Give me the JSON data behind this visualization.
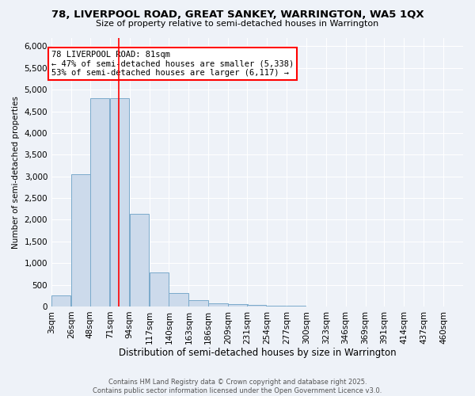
{
  "title_line1": "78, LIVERPOOL ROAD, GREAT SANKEY, WARRINGTON, WA5 1QX",
  "title_line2": "Size of property relative to semi-detached houses in Warrington",
  "xlabel": "Distribution of semi-detached houses by size in Warrington",
  "ylabel": "Number of semi-detached properties",
  "bar_color": "#ccdaeb",
  "bar_edgecolor": "#7aaacb",
  "annotation_text": "78 LIVERPOOL ROAD: 81sqm\n← 47% of semi-detached houses are smaller (5,338)\n53% of semi-detached houses are larger (6,117) →",
  "annotation_box_color": "white",
  "annotation_box_edgecolor": "red",
  "property_line_x": 81,
  "property_line_color": "red",
  "categories": [
    "3sqm",
    "26sqm",
    "48sqm",
    "71sqm",
    "94sqm",
    "117sqm",
    "140sqm",
    "163sqm",
    "186sqm",
    "209sqm",
    "231sqm",
    "254sqm",
    "277sqm",
    "300sqm",
    "323sqm",
    "346sqm",
    "369sqm",
    "391sqm",
    "414sqm",
    "437sqm",
    "460sqm"
  ],
  "bin_edges": [
    3,
    26,
    48,
    71,
    94,
    117,
    140,
    163,
    186,
    209,
    231,
    254,
    277,
    300,
    323,
    346,
    369,
    391,
    414,
    437,
    460
  ],
  "values": [
    250,
    3050,
    4800,
    4800,
    2130,
    780,
    310,
    140,
    70,
    50,
    30,
    20,
    10,
    0,
    0,
    0,
    0,
    0,
    0,
    0,
    0
  ],
  "ylim": [
    0,
    6200
  ],
  "yticks": [
    0,
    500,
    1000,
    1500,
    2000,
    2500,
    3000,
    3500,
    4000,
    4500,
    5000,
    5500,
    6000
  ],
  "footer_text": "Contains HM Land Registry data © Crown copyright and database right 2025.\nContains public sector information licensed under the Open Government Licence v3.0.",
  "bg_color": "#eef2f8",
  "grid_color": "white"
}
